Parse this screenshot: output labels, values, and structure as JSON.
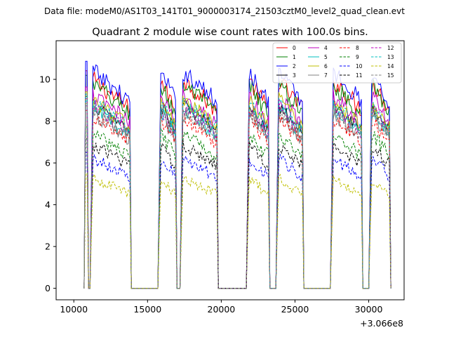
{
  "header": {
    "data_file": "Data file: modeM0/AS1T03_141T01_9000003174_21503cztM0_level2_quad_clean.evt"
  },
  "chart_data": {
    "type": "line",
    "title": "Quadrant 2 module wise count rates with 100.0s bins.",
    "xlabel": "",
    "ylabel": "",
    "x_offset_label": "+3.066e8",
    "xlim": [
      8800,
      32400
    ],
    "ylim": [
      -0.55,
      11.85
    ],
    "x_ticks": [
      10000,
      15000,
      20000,
      25000,
      30000
    ],
    "x_tick_labels": [
      "10000",
      "15000",
      "20000",
      "25000",
      "30000"
    ],
    "y_ticks": [
      0,
      2,
      4,
      6,
      8,
      10
    ],
    "y_tick_labels": [
      "0",
      "2",
      "4",
      "6",
      "8",
      "10"
    ],
    "grid": false,
    "legend_position": "top-right",
    "segments": [
      {
        "start": 10800,
        "end": 10950,
        "kind": "spike"
      },
      {
        "start": 11200,
        "end": 13800,
        "kind": "on"
      },
      {
        "start": 15800,
        "end": 16900,
        "kind": "on"
      },
      {
        "start": 17300,
        "end": 19700,
        "kind": "on"
      },
      {
        "start": 21800,
        "end": 23200,
        "kind": "on"
      },
      {
        "start": 23800,
        "end": 25500,
        "kind": "on"
      },
      {
        "start": 27500,
        "end": 29500,
        "kind": "on"
      },
      {
        "start": 30100,
        "end": 31400,
        "kind": "on"
      }
    ],
    "series": [
      {
        "name": "0",
        "color": "#ff0000",
        "style": "solid",
        "level": 9.3,
        "noise": 0.45
      },
      {
        "name": "1",
        "color": "#008000",
        "style": "solid",
        "level": 9.1,
        "noise": 0.45
      },
      {
        "name": "2",
        "color": "#0000ff",
        "style": "solid",
        "level": 9.7,
        "noise": 0.45
      },
      {
        "name": "3",
        "color": "#000000",
        "style": "solid",
        "level": 8.2,
        "noise": 0.35
      },
      {
        "name": "4",
        "color": "#bf00bf",
        "style": "solid",
        "level": 8.6,
        "noise": 0.4
      },
      {
        "name": "5",
        "color": "#00bfbf",
        "style": "solid",
        "level": 8.0,
        "noise": 0.4
      },
      {
        "name": "6",
        "color": "#bfbf00",
        "style": "solid",
        "level": 8.4,
        "noise": 0.4
      },
      {
        "name": "7",
        "color": "#808080",
        "style": "solid",
        "level": 7.8,
        "noise": 0.4
      },
      {
        "name": "8",
        "color": "#ff0000",
        "style": "dashed",
        "level": 7.6,
        "noise": 0.35
      },
      {
        "name": "9",
        "color": "#008000",
        "style": "dashed",
        "level": 6.9,
        "noise": 0.35
      },
      {
        "name": "10",
        "color": "#0000ff",
        "style": "dashed",
        "level": 5.8,
        "noise": 0.3
      },
      {
        "name": "11",
        "color": "#000000",
        "style": "dashed",
        "level": 6.4,
        "noise": 0.3
      },
      {
        "name": "12",
        "color": "#bf00bf",
        "style": "dashed",
        "level": 8.1,
        "noise": 0.35
      },
      {
        "name": "13",
        "color": "#00bfbf",
        "style": "dashed",
        "level": 8.3,
        "noise": 0.35
      },
      {
        "name": "14",
        "color": "#bfbf00",
        "style": "dashed",
        "level": 4.9,
        "noise": 0.25
      },
      {
        "name": "15",
        "color": "#808080",
        "style": "dashed",
        "level": 7.9,
        "noise": 0.35
      }
    ]
  }
}
